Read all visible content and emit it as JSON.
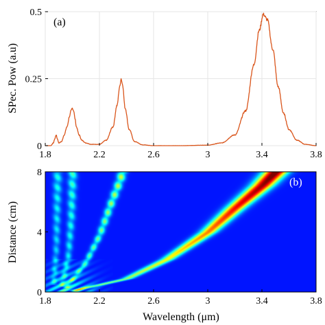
{
  "chart_data": [
    {
      "panel": "a",
      "type": "line",
      "panel_label": "(a)",
      "xlabel": "",
      "ylabel": "SPec. Pow (a.u)",
      "xlim": [
        1.8,
        3.8
      ],
      "ylim": [
        0,
        0.5
      ],
      "xticks": [
        1.8,
        2.2,
        2.6,
        3,
        3.4,
        3.8
      ],
      "xtick_labels": [
        "1.8",
        "2.2",
        "2.6",
        "3",
        "3.4",
        "3.8"
      ],
      "yticks": [
        0,
        0.25,
        0.5
      ],
      "ytick_labels": [
        "0",
        "0.25",
        "0.5"
      ],
      "grid": true,
      "line_color": "#d9541a",
      "series": [
        {
          "x": [
            1.8,
            1.84,
            1.86,
            1.87,
            1.88,
            1.89,
            1.9,
            1.92,
            1.94,
            1.96,
            1.98,
            1.99,
            2.0,
            2.01,
            2.02,
            2.03,
            2.05,
            2.07,
            2.1,
            2.14,
            2.2,
            2.25,
            2.3,
            2.33,
            2.35,
            2.36,
            2.37,
            2.39,
            2.42,
            2.46,
            2.52,
            2.6,
            2.8,
            3.0,
            3.1,
            3.2,
            3.28,
            3.34,
            3.38,
            3.41,
            3.44,
            3.48,
            3.52,
            3.56,
            3.6,
            3.66,
            3.72,
            3.8
          ],
          "y": [
            0.0,
            0.0,
            0.01,
            0.025,
            0.04,
            0.025,
            0.01,
            0.015,
            0.04,
            0.07,
            0.11,
            0.13,
            0.14,
            0.13,
            0.1,
            0.07,
            0.04,
            0.02,
            0.01,
            0.005,
            0.005,
            0.02,
            0.07,
            0.15,
            0.22,
            0.25,
            0.23,
            0.14,
            0.06,
            0.015,
            0.003,
            0.0,
            0.0,
            0.002,
            0.01,
            0.04,
            0.13,
            0.3,
            0.43,
            0.49,
            0.47,
            0.36,
            0.22,
            0.12,
            0.06,
            0.02,
            0.005,
            0.0
          ]
        }
      ]
    },
    {
      "panel": "b",
      "type": "heatmap",
      "panel_label": "(b)",
      "xlabel": "Wavelength (μm)",
      "ylabel": "Distance (cm)",
      "xlim": [
        1.8,
        3.8
      ],
      "ylim": [
        0,
        8
      ],
      "xticks": [
        1.8,
        2.2,
        2.6,
        3,
        3.4,
        3.8
      ],
      "xtick_labels": [
        "1.8",
        "2.2",
        "2.6",
        "3",
        "3.4",
        "3.8"
      ],
      "yticks": [
        0,
        4,
        8
      ],
      "ytick_labels": [
        "0",
        "4",
        "8"
      ],
      "colormap": "jet",
      "background_color": "#00008f",
      "bands": [
        {
          "name": "main",
          "peak_intensity": 1.0,
          "ridge": [
            [
              2.0,
              0.1
            ],
            [
              2.4,
              0.9
            ],
            [
              2.7,
              2.2
            ],
            [
              3.0,
              4.0
            ],
            [
              3.2,
              5.6
            ],
            [
              3.4,
              7.1
            ],
            [
              3.5,
              8.0
            ]
          ]
        },
        {
          "name": "middle",
          "peak_intensity": 0.5,
          "ridge": [
            [
              1.95,
              0.3
            ],
            [
              2.1,
              2.0
            ],
            [
              2.2,
              3.8
            ],
            [
              2.28,
              5.8
            ],
            [
              2.34,
              7.2
            ],
            [
              2.37,
              8.0
            ]
          ]
        },
        {
          "name": "left",
          "peak_intensity": 0.35,
          "ridge": [
            [
              1.92,
              0.4
            ],
            [
              1.97,
              2.5
            ],
            [
              1.99,
              5.0
            ],
            [
              2.0,
              8.0
            ]
          ]
        },
        {
          "name": "far-left",
          "peak_intensity": 0.3,
          "ridge": [
            [
              1.86,
              0.5
            ],
            [
              1.88,
              3.0
            ],
            [
              1.89,
              8.0
            ]
          ]
        }
      ]
    }
  ]
}
